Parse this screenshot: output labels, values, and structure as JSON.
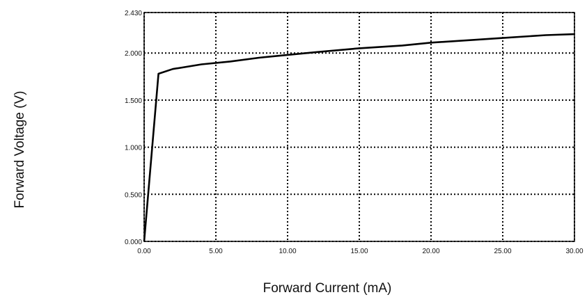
{
  "chart_data": {
    "type": "line",
    "title": "",
    "xlabel": "Forward Current (mA)",
    "ylabel": "Forward Voltage (V)",
    "xlim": [
      0,
      30
    ],
    "ylim": [
      0,
      2.43
    ],
    "x_ticks": [
      "0.00",
      "5.00",
      "10.00",
      "15.00",
      "20.00",
      "25.00",
      "30.00"
    ],
    "y_ticks": [
      "0.000",
      "0.500",
      "1.000",
      "1.500",
      "2.000",
      "2.430"
    ],
    "grid": true,
    "grid_style": "dotted",
    "series": [
      {
        "x": [
          0,
          1,
          2,
          4,
          6,
          8,
          10,
          12,
          15,
          18,
          20,
          23,
          25,
          28,
          30
        ],
        "y": [
          0,
          1.78,
          1.83,
          1.88,
          1.91,
          1.95,
          1.98,
          2.01,
          2.05,
          2.08,
          2.11,
          2.14,
          2.16,
          2.19,
          2.2
        ],
        "color": "#000000"
      }
    ]
  }
}
